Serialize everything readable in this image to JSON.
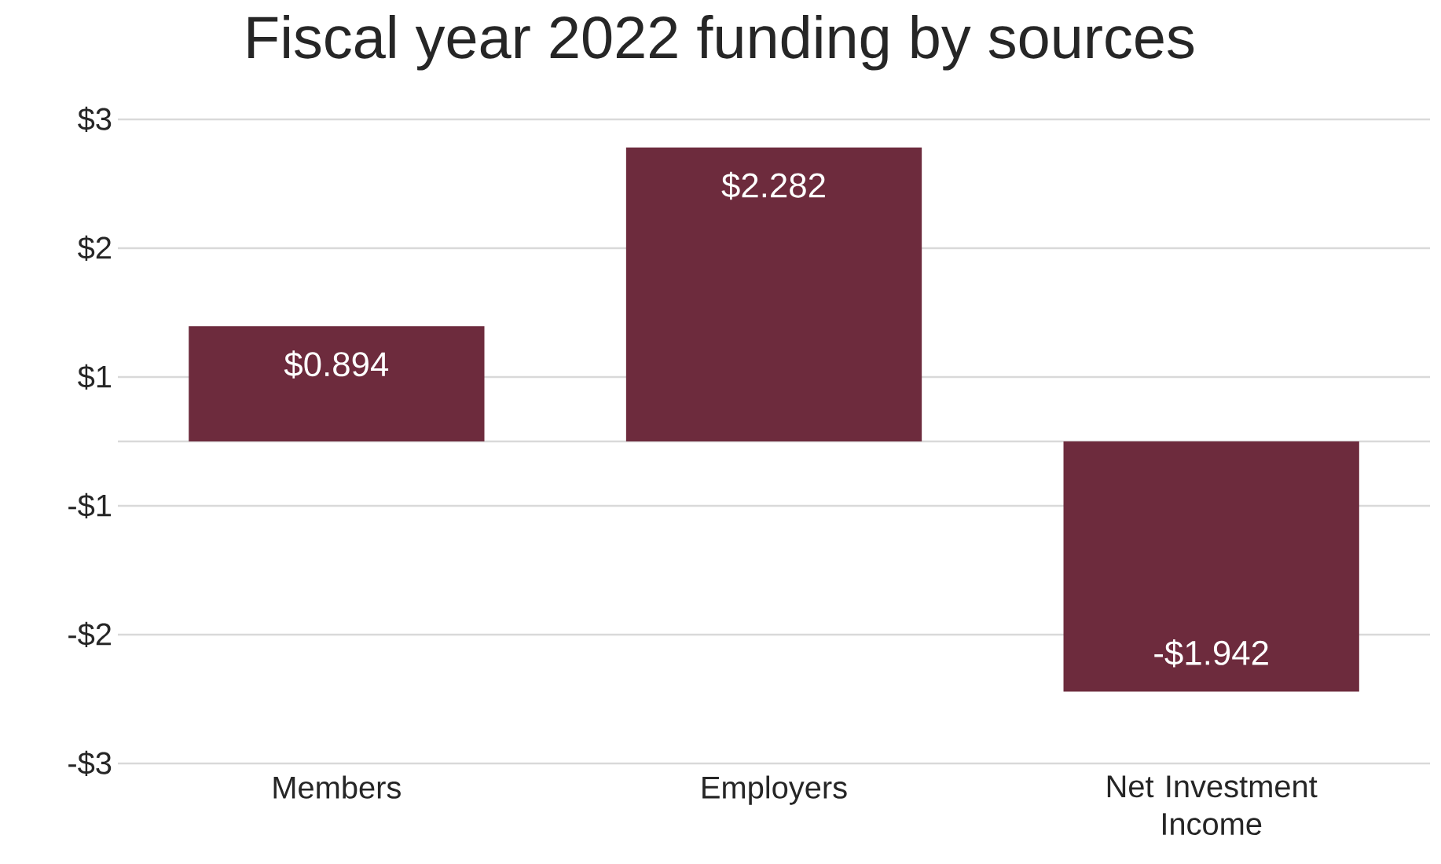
{
  "chart_data": {
    "type": "bar",
    "title": "Fiscal year 2022 funding by sources",
    "categories": [
      "Members",
      "Employers",
      "Net Investment Income"
    ],
    "values": [
      0.894,
      2.282,
      -1.942
    ],
    "value_labels": [
      "$0.894",
      "$2.282",
      "-$1.942"
    ],
    "color": "#6d2b3d",
    "ylim": [
      -2.5,
      2.5
    ],
    "yticks": [
      {
        "value": -2.5,
        "label": "-$3"
      },
      {
        "value": -1.5,
        "label": "-$2"
      },
      {
        "value": -0.5,
        "label": "-$1"
      },
      {
        "value": 0.5,
        "label": "$1"
      },
      {
        "value": 1.5,
        "label": "$2"
      },
      {
        "value": 2.5,
        "label": "$3"
      }
    ],
    "grid": "y"
  }
}
